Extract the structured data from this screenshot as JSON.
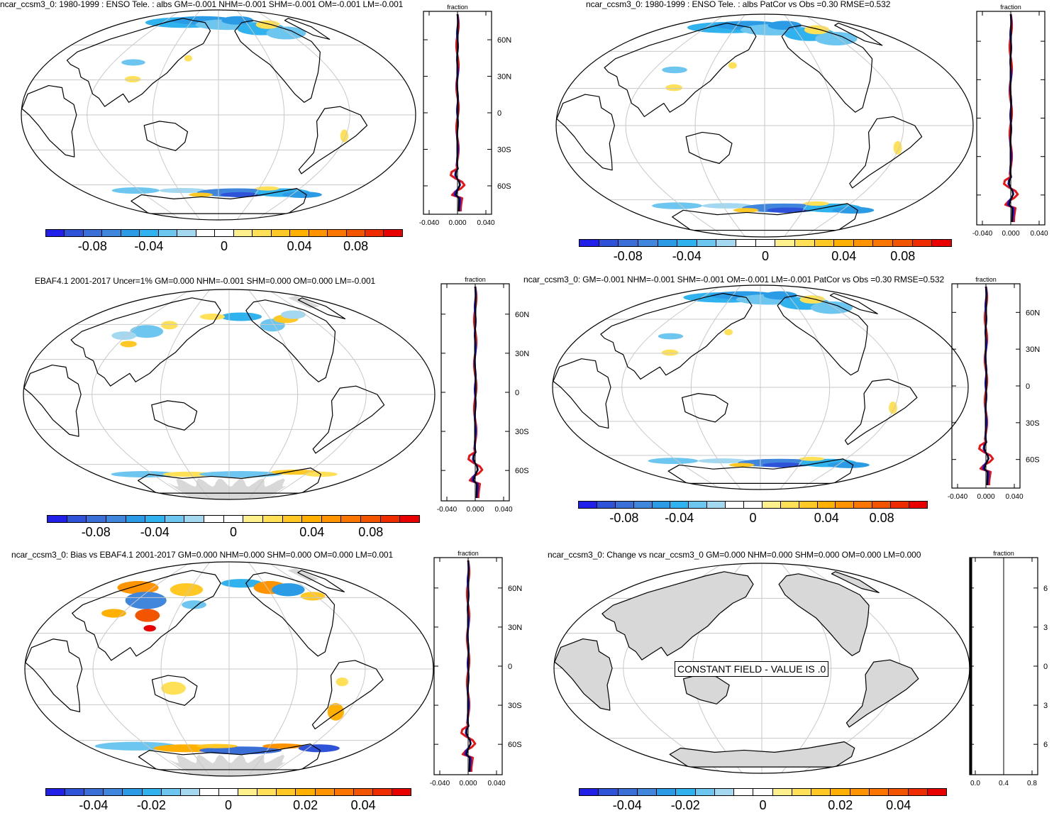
{
  "colors": {
    "scale": [
      "#2020e8",
      "#2e52d8",
      "#3a6fd8",
      "#3f86dc",
      "#2c9be6",
      "#2fb2ee",
      "#6cc6f0",
      "#a4d8f0",
      "#ffffff",
      "#ffffff",
      "#fff08e",
      "#ffe056",
      "#ffc825",
      "#ffb000",
      "#ff9400",
      "#fa7600",
      "#f25400",
      "#ee2c00",
      "#e80000"
    ],
    "land_gray": "#d8d8d8",
    "grid": "#c8c8c8",
    "profile_red": "#ee1111",
    "profile_blue": "#1111dd",
    "profile_black": "#000000"
  },
  "panels": [
    {
      "title": "ncar_ccsm3_0: 1980-1999 : ENSO Tele. : albs GM=-0.001 NHM=-0.001 SHM=-0.001 OM=-0.001 LM=-0.001",
      "profile_title": "fraction",
      "profile_x_ticks": [
        "-0.040",
        "0.000",
        "0.040"
      ],
      "lat_labels": [
        "60N",
        "30N",
        "0",
        "30S",
        "60S"
      ],
      "colorbar_labels": [
        "-0.08",
        "-0.04",
        "0",
        "0.04",
        "0.08"
      ],
      "pattern": "model",
      "gray_ice": false
    },
    {
      "title": "ncar_ccsm3_0: 1980-1999 : ENSO Tele. : albs PatCor vs Obs =0.30 RMSE=0.532",
      "profile_title": "fraction",
      "profile_x_ticks": [
        "-0.040",
        "0.000",
        "0.040"
      ],
      "lat_labels": [],
      "colorbar_labels": [
        "-0.08",
        "-0.04",
        "0",
        "0.04",
        "0.08"
      ],
      "pattern": "model",
      "gray_ice": false
    },
    {
      "title": "EBAF4.1 2001-2017 Uncer=1% GM=0.000 NHM=-0.001 SHM=0.000 OM=0.000 LM=-0.001",
      "profile_title": "fraction",
      "profile_x_ticks": [
        "-0.040",
        "0.000",
        "0.040"
      ],
      "lat_labels": [
        "60N",
        "30N",
        "0",
        "30S",
        "60S"
      ],
      "colorbar_labels": [
        "-0.08",
        "-0.04",
        "0",
        "0.04",
        "0.08"
      ],
      "pattern": "obs",
      "gray_ice": true
    },
    {
      "title": "ncar_ccsm3_0: GM=-0.001 NHM=-0.001 SHM=-0.001 OM=-0.001 LM=-0.001 PatCor vs Obs =0.30 RMSE=0.532",
      "profile_title": "fraction",
      "profile_x_ticks": [
        "-0.040",
        "0.000",
        "0.040"
      ],
      "lat_labels": [
        "60N",
        "30N",
        "0",
        "30S",
        "60S"
      ],
      "colorbar_labels": [
        "-0.08",
        "-0.04",
        "0",
        "0.04",
        "0.08"
      ],
      "pattern": "model",
      "gray_ice": false
    },
    {
      "title": "ncar_ccsm3_0: Bias vs EBAF4.1 2001-2017 GM=0.000 NHM=0.000 SHM=0.000 OM=0.000 LM=0.001",
      "profile_title": "fraction",
      "profile_x_ticks": [
        "-0.040",
        "0.000",
        "0.040"
      ],
      "lat_labels": [
        "60N",
        "30N",
        "0",
        "30S",
        "60S"
      ],
      "colorbar_labels": [
        "-0.04",
        "-0.02",
        "0",
        "0.02",
        "0.04"
      ],
      "pattern": "bias",
      "gray_ice": true
    },
    {
      "title": "ncar_ccsm3_0: Change vs ncar_ccsm3_0 GM=0.000 NHM=0.000 SHM=0.000 OM=0.000 LM=0.000",
      "profile_title": "fraction",
      "profile_x_ticks": [
        "0.0",
        "0.4",
        "0.8"
      ],
      "lat_labels": [
        "6",
        "3",
        "0",
        "3",
        "6"
      ],
      "colorbar_labels": [
        "-0.04",
        "-0.02",
        "0",
        "0.02",
        "0.04"
      ],
      "pattern": "constant",
      "gray_ice": false,
      "constant_label": "CONSTANT FIELD - VALUE IS .0"
    }
  ]
}
